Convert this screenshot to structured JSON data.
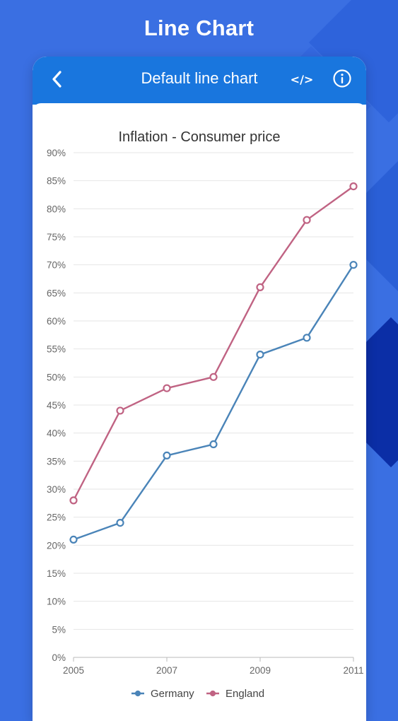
{
  "page": {
    "title": "Line Chart"
  },
  "appbar": {
    "title": "Default line chart",
    "back_icon": "chevron-left-icon",
    "code_icon": "code-icon",
    "code_label": "</>",
    "info_icon": "info-icon"
  },
  "colors": {
    "background": "#3a6fe2",
    "appbar": "#1976de",
    "germany": "#4a84b8",
    "england": "#c06383"
  },
  "chart_data": {
    "type": "line",
    "title": "Inflation - Consumer price",
    "x": [
      2005,
      2006,
      2007,
      2008,
      2009,
      2010,
      2011
    ],
    "x_tick_labels": [
      "2005",
      "2007",
      "2009",
      "2011"
    ],
    "y_tick_labels": [
      "0%",
      "5%",
      "10%",
      "15%",
      "20%",
      "25%",
      "30%",
      "35%",
      "40%",
      "45%",
      "50%",
      "55%",
      "60%",
      "65%",
      "70%",
      "75%",
      "80%",
      "85%",
      "90%"
    ],
    "ylim": [
      0,
      90
    ],
    "xlim": [
      2005,
      2011
    ],
    "grid": "horizontal",
    "legend_position": "bottom",
    "series": [
      {
        "name": "Germany",
        "color": "#4a84b8",
        "values": [
          21,
          24,
          36,
          38,
          54,
          57,
          70
        ]
      },
      {
        "name": "England",
        "color": "#c06383",
        "values": [
          28,
          44,
          48,
          50,
          66,
          78,
          84
        ]
      }
    ]
  }
}
